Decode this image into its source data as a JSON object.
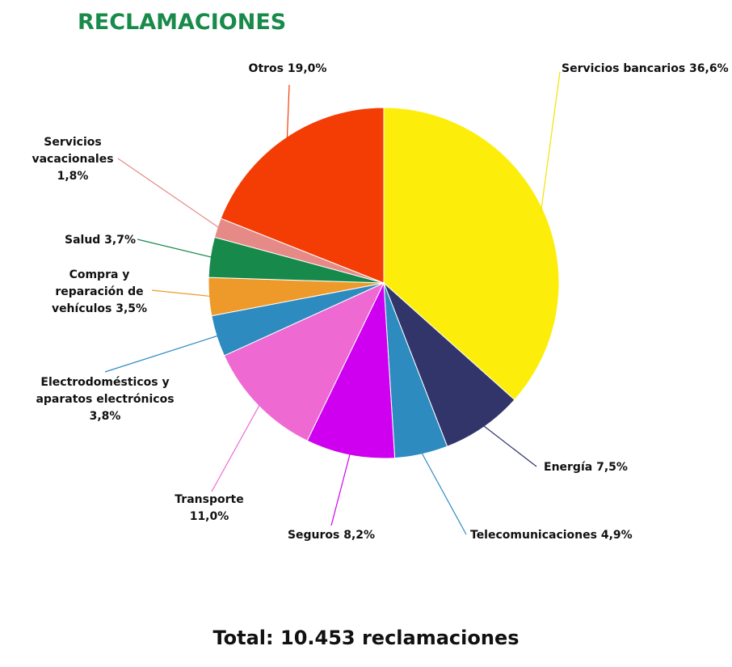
{
  "title": "RECLAMACIONES",
  "colors": {
    "title": "#188a4a",
    "slice_border": "#ffffff"
  },
  "total_text": "Total: 10.453 reclamaciones",
  "chart_data": {
    "type": "pie",
    "title": "RECLAMACIONES",
    "start_angle_deg": 0,
    "direction": "clockwise",
    "series": [
      {
        "name": "Servicios bancarios",
        "value": 36.6,
        "label": "Servicios bancarios 36,6%",
        "color": "#fcee0a"
      },
      {
        "name": "Energía",
        "value": 7.5,
        "label": "Energía 7,5%",
        "color": "#32356a"
      },
      {
        "name": "Telecomunicaciones",
        "value": 4.9,
        "label": "Telecomunicaciones 4,9%",
        "color": "#2e8bbf"
      },
      {
        "name": "Seguros",
        "value": 8.2,
        "label": "Seguros 8,2%",
        "color": "#cf00ef"
      },
      {
        "name": "Transporte",
        "value": 11.0,
        "label": "Transporte 11,0%",
        "color": "#ee69d2"
      },
      {
        "name": "Electrodomésticos y aparatos electrónicos",
        "value": 3.8,
        "label": "Electrodomésticos y aparatos electrónicos 3,8%",
        "color": "#2e8bbf"
      },
      {
        "name": "Compra y reparación de vehículos",
        "value": 3.5,
        "label": "Compra y reparación de vehículos 3,5%",
        "color": "#ee9a2a"
      },
      {
        "name": "Salud",
        "value": 3.7,
        "label": "Salud 3,7%",
        "color": "#17894b"
      },
      {
        "name": "Servicios vacacionales",
        "value": 1.8,
        "label": "Servicios vacacionales 1,8%",
        "color": "#e58a86"
      },
      {
        "name": "Otros",
        "value": 19.0,
        "label": "Otros 19,0%",
        "color": "#f43c05"
      }
    ],
    "total": "Total: 10.453 reclamaciones",
    "labels": [
      {
        "lines": [
          "Servicios bancarios 36,6%"
        ]
      },
      {
        "lines": [
          "Energía 7,5%"
        ]
      },
      {
        "lines": [
          "Telecomunicaciones 4,9%"
        ]
      },
      {
        "lines": [
          "Seguros 8,2%"
        ]
      },
      {
        "lines": [
          "Transporte",
          "11,0%"
        ]
      },
      {
        "lines": [
          "Electrodomésticos y",
          "aparatos electrónicos",
          "3,8%"
        ]
      },
      {
        "lines": [
          "Compra y",
          "reparación de",
          "vehículos 3,5%"
        ]
      },
      {
        "lines": [
          "Salud 3,7%"
        ]
      },
      {
        "lines": [
          "Servicios",
          "vacacionales",
          "1,8%"
        ]
      },
      {
        "lines": [
          "Otros 19,0%"
        ]
      }
    ]
  }
}
